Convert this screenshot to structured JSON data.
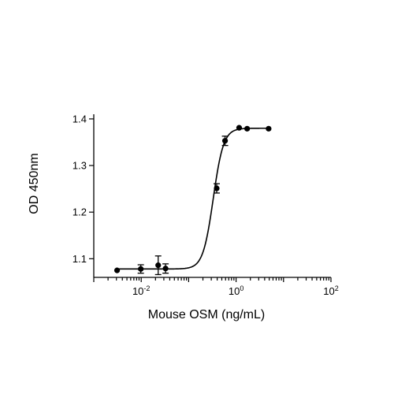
{
  "chart_data": {
    "type": "scatter",
    "title": "",
    "xlabel": "Mouse OSM (ng/mL)",
    "ylabel": "OD 450nm",
    "xscale": "log",
    "xlim": [
      0.001,
      100
    ],
    "ylim": [
      1.06,
      1.41
    ],
    "grid": false,
    "legend": "none",
    "x_ticks": [
      {
        "value": 0.01,
        "base": "10",
        "exp": "-2"
      },
      {
        "value": 1,
        "base": "10",
        "exp": "0"
      },
      {
        "value": 100,
        "base": "10",
        "exp": "2"
      }
    ],
    "y_ticks": [
      {
        "value": 1.1,
        "label": "1.1"
      },
      {
        "value": 1.2,
        "label": "1.2"
      },
      {
        "value": 1.3,
        "label": "1.3"
      },
      {
        "value": 1.4,
        "label": "1.4"
      }
    ],
    "points": [
      {
        "x": 0.0031,
        "y": 1.075,
        "err": 0
      },
      {
        "x": 0.0098,
        "y": 1.078,
        "err": 0.009
      },
      {
        "x": 0.0228,
        "y": 1.086,
        "err": 0.02
      },
      {
        "x": 0.0326,
        "y": 1.079,
        "err": 0.01
      },
      {
        "x": 0.39,
        "y": 1.251,
        "err": 0.01
      },
      {
        "x": 0.585,
        "y": 1.353,
        "err": 0.01
      },
      {
        "x": 1.16,
        "y": 1.381,
        "err": 0
      },
      {
        "x": 1.71,
        "y": 1.379,
        "err": 0
      },
      {
        "x": 4.85,
        "y": 1.379,
        "err": 0
      }
    ],
    "fit": {
      "model": "4PL",
      "bottom": 1.078,
      "top": 1.38,
      "ec50": 0.33,
      "hill": 4.0
    },
    "colors": {
      "marker": "#000000",
      "line": "#000000"
    }
  }
}
